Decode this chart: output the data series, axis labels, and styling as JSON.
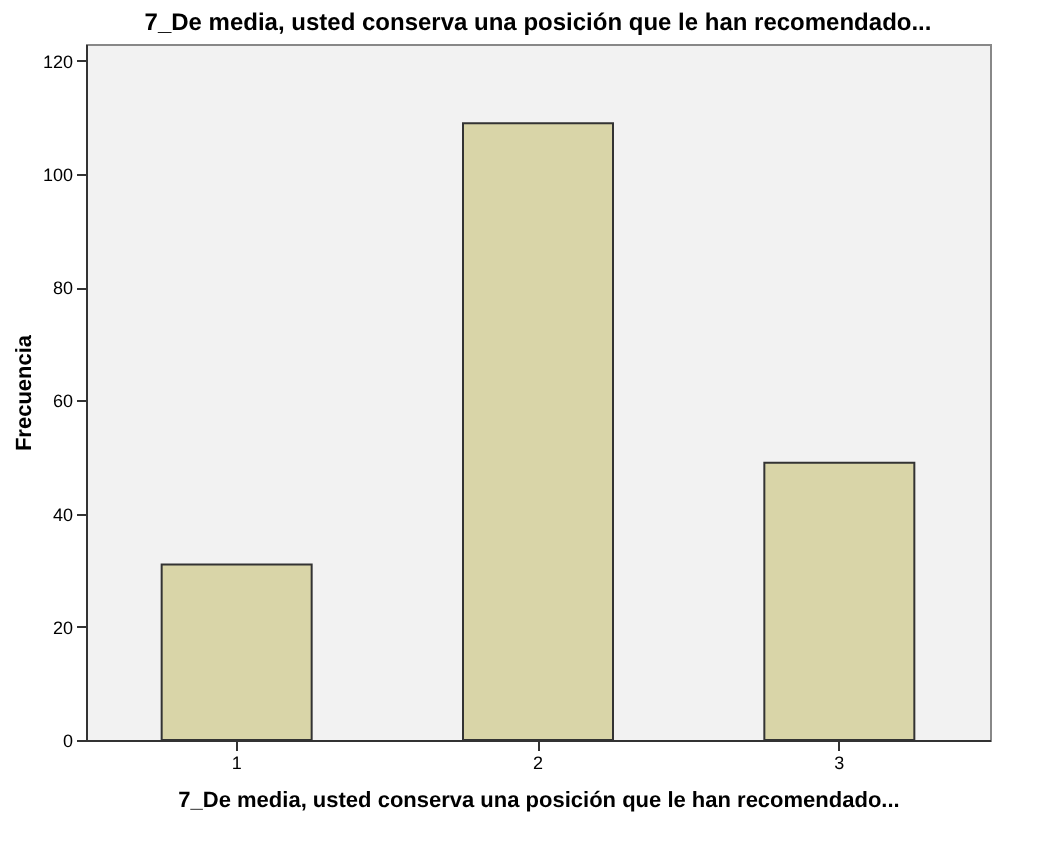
{
  "chart_data": {
    "type": "bar",
    "title": "7_De media, usted conserva una posición que le han recomendado...",
    "xlabel": "7_De media, usted conserva una posición que le han recomendado...",
    "ylabel": "Frecuencia",
    "categories": [
      "1",
      "2",
      "3"
    ],
    "values": [
      31,
      109,
      49
    ],
    "color": "#d9d5a8",
    "ylim": [
      0,
      123
    ],
    "yticks": [
      0,
      20,
      40,
      60,
      80,
      100,
      120
    ],
    "grid": false
  }
}
